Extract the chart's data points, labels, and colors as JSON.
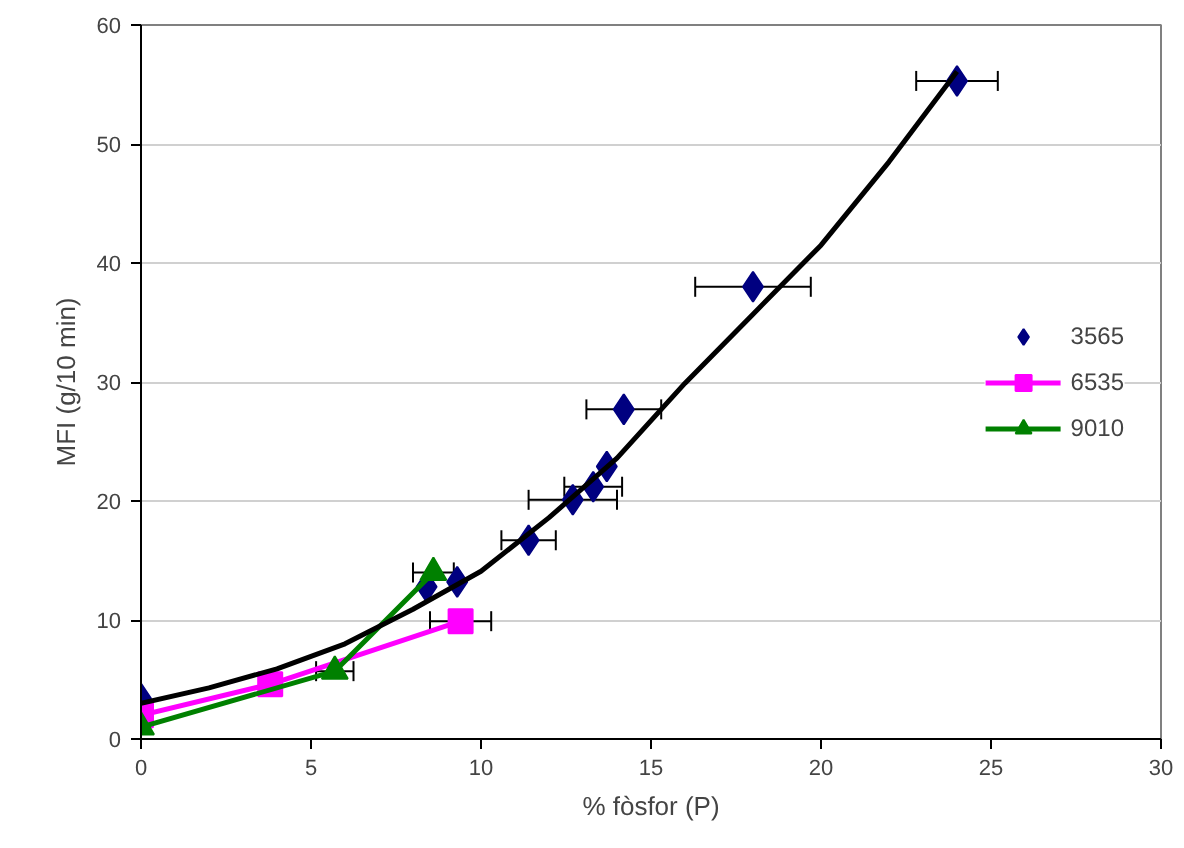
{
  "chart_data": {
    "type": "scatter",
    "xlabel": "% fòsfor (P)",
    "ylabel": "MFI (g/10 min)",
    "xlim": [
      0,
      30
    ],
    "ylim": [
      0,
      60
    ],
    "xticks": [
      0,
      5,
      10,
      15,
      20,
      25,
      30
    ],
    "yticks": [
      0,
      10,
      20,
      30,
      40,
      50,
      60
    ],
    "grid": "y",
    "legend": "right",
    "series": [
      {
        "name": "3565",
        "marker": "diamond",
        "color": "#000080",
        "x": [
          0,
          8.4,
          9.3,
          11.4,
          12.7,
          13.3,
          13.7,
          14.2,
          18.0,
          24.0
        ],
        "values": [
          3.4,
          12.8,
          13.2,
          16.7,
          20.1,
          21.2,
          22.9,
          27.7,
          38.0,
          55.3
        ],
        "xerrors": [
          null,
          null,
          null,
          0.8,
          1.3,
          0.85,
          null,
          1.1,
          1.7,
          1.2
        ]
      },
      {
        "name": "6535",
        "type": "line",
        "marker": "square",
        "color": "#ff00ff",
        "x": [
          0,
          3.8,
          9.4
        ],
        "values": [
          2.0,
          4.6,
          9.9
        ],
        "xerrors": [
          null,
          null,
          0.9
        ]
      },
      {
        "name": "9010",
        "type": "line",
        "marker": "triangle",
        "color": "#008000",
        "x": [
          0,
          5.7,
          8.6
        ],
        "values": [
          1.0,
          5.7,
          14.0
        ],
        "xerrors": [
          null,
          0.55,
          0.6
        ]
      },
      {
        "type": "line",
        "marker": "none",
        "color": "#000000",
        "x": [
          0,
          2,
          4,
          6,
          8,
          10,
          12,
          14,
          16,
          18,
          20,
          22,
          24
        ],
        "values": [
          3.0,
          4.3,
          5.9,
          8.0,
          10.9,
          14.1,
          18.6,
          23.6,
          29.9,
          35.7,
          41.5,
          48.5,
          56.1
        ]
      }
    ]
  }
}
